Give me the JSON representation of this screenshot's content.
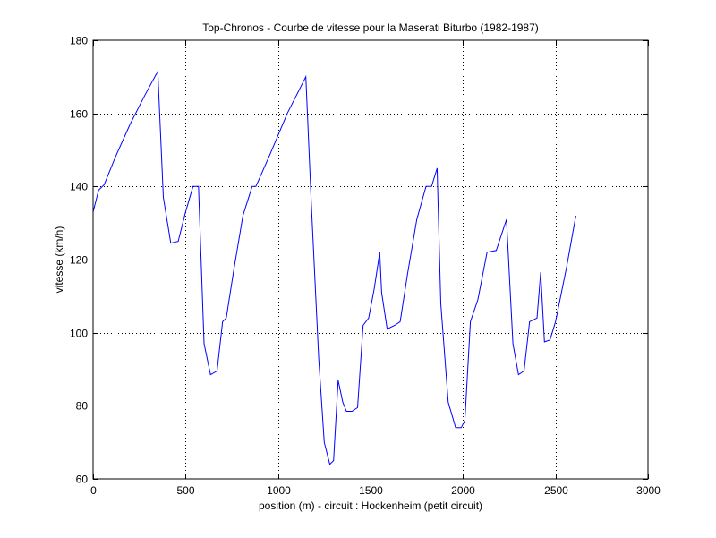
{
  "chart_data": {
    "type": "line",
    "title": "Top-Chronos - Courbe de vitesse pour la Maserati Biturbo (1982-1987)",
    "xlabel": "position (m) - circuit : Hockenheim (petit circuit)",
    "ylabel": "vitesse (km/h)",
    "xlim": [
      0,
      3000
    ],
    "ylim": [
      60,
      180
    ],
    "xticks": [
      0,
      500,
      1000,
      1500,
      2000,
      2500,
      3000
    ],
    "yticks": [
      60,
      80,
      100,
      120,
      140,
      160,
      180
    ],
    "grid": true,
    "line_color": "#0000ff",
    "series": [
      {
        "x": [
          0,
          30,
          60,
          120,
          200,
          280,
          350,
          380,
          420,
          460,
          500,
          540,
          570,
          600,
          635,
          670,
          700,
          720,
          760,
          810,
          860,
          880,
          950,
          1050,
          1150,
          1180,
          1220,
          1250,
          1280,
          1300,
          1325,
          1350,
          1370,
          1400,
          1430,
          1460,
          1490,
          1520,
          1550,
          1560,
          1590,
          1630,
          1660,
          1700,
          1750,
          1800,
          1830,
          1860,
          1880,
          1920,
          1960,
          1990,
          2010,
          2040,
          2080,
          2130,
          2180,
          2235,
          2270,
          2300,
          2330,
          2360,
          2400,
          2420,
          2440,
          2470,
          2500,
          2560,
          2610
        ],
        "y": [
          133,
          139,
          140.5,
          148,
          157,
          165,
          171.5,
          137,
          124.5,
          125,
          133,
          140,
          140,
          97,
          88.5,
          89.5,
          103,
          104,
          117,
          132,
          140,
          140,
          148,
          160,
          170,
          135,
          93,
          70,
          64,
          65,
          87,
          81,
          78.5,
          78.5,
          79.5,
          102,
          104,
          112,
          122,
          111,
          101,
          102,
          103,
          116,
          131,
          140,
          140,
          145,
          108,
          81,
          74,
          74,
          76,
          103,
          109,
          122,
          122.5,
          131,
          97,
          88.5,
          89.5,
          103,
          104,
          116.5,
          97.5,
          98,
          103,
          118,
          132
        ]
      }
    ]
  }
}
